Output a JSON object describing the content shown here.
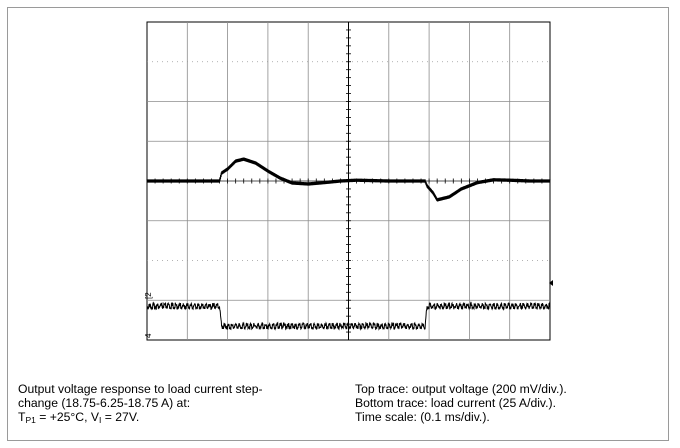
{
  "chart_data": {
    "type": "line",
    "title": "",
    "grid": true,
    "divisions": {
      "x": 10,
      "y": 8
    },
    "x_scale": "0.1 ms/div.",
    "x_range_ms": [
      0,
      1.0
    ],
    "series": [
      {
        "name": "Top trace: output voltage (200 mV/div.)",
        "units": "mV relative to steady state",
        "step_times_ms": [
          0.18,
          0.69
        ],
        "points_ms_mv": [
          [
            0.0,
            0
          ],
          [
            0.18,
            0
          ],
          [
            0.185,
            40
          ],
          [
            0.2,
            60
          ],
          [
            0.22,
            100
          ],
          [
            0.24,
            110
          ],
          [
            0.27,
            90
          ],
          [
            0.3,
            50
          ],
          [
            0.33,
            15
          ],
          [
            0.36,
            -10
          ],
          [
            0.4,
            -15
          ],
          [
            0.44,
            -8
          ],
          [
            0.48,
            0
          ],
          [
            0.52,
            4
          ],
          [
            0.56,
            2
          ],
          [
            0.6,
            0
          ],
          [
            0.69,
            0
          ],
          [
            0.695,
            -25
          ],
          [
            0.71,
            -60
          ],
          [
            0.72,
            -95
          ],
          [
            0.75,
            -80
          ],
          [
            0.78,
            -40
          ],
          [
            0.82,
            -8
          ],
          [
            0.86,
            6
          ],
          [
            0.9,
            4
          ],
          [
            0.95,
            0
          ],
          [
            1.0,
            0
          ]
        ]
      },
      {
        "name": "Bottom trace: load current (25 A/div.)",
        "units": "A",
        "points_ms_a": [
          [
            0.0,
            18.75
          ],
          [
            0.18,
            18.75
          ],
          [
            0.185,
            6.25
          ],
          [
            0.69,
            6.25
          ],
          [
            0.695,
            18.75
          ],
          [
            1.0,
            18.75
          ]
        ]
      }
    ],
    "channel_markers": [
      "[2",
      "4"
    ]
  },
  "caption": {
    "left_line1": "Output voltage response to load current step-",
    "left_line2": "change (18.75-6.25-18.75 A) at:",
    "left_line3_T": "T",
    "left_line3_Tsub": "P1",
    "left_line3_mid": " = +25°C, V",
    "left_line3_Vsub": "I",
    "left_line3_end": " = 27V.",
    "right_line1": "Top trace: output voltage (200 mV/div.).",
    "right_line2": "Bottom trace: load current (25 A/div.).",
    "right_line3": "Time scale: (0.1 ms/div.)."
  }
}
